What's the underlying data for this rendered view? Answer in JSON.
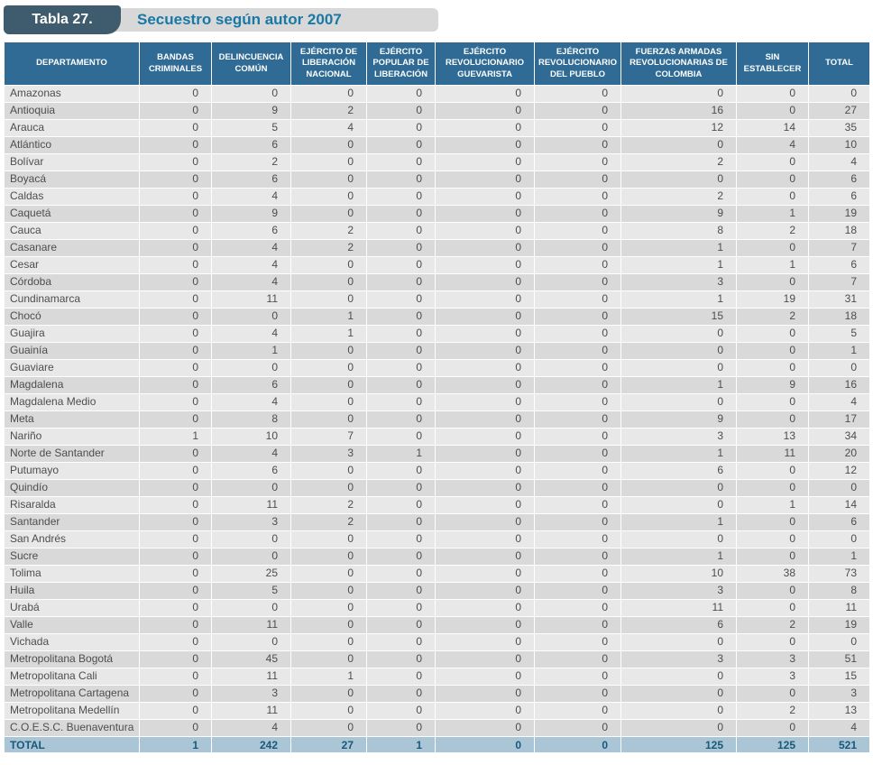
{
  "title": {
    "label": "Tabla 27.",
    "text": "Secuestro según autor 2007"
  },
  "colors": {
    "header_bg": "#2f6b94",
    "total_row_bg": "#a9c5d6",
    "total_row_text": "#19587a",
    "title_label_bg": "#3f5c6e",
    "title_text_color": "#1878a6",
    "row_odd": "#e8e8e8",
    "row_even": "#d9d9d9"
  },
  "table": {
    "columns": [
      "DEPARTAMENTO",
      "BANDAS CRIMINALES",
      "DELINCUENCIA COMÚN",
      "EJÉRCITO DE LIBERACIÓN NACIONAL",
      "EJÉRCITO POPULAR DE LIBERACIÓN",
      "EJÉRCITO REVOLUCIONARIO GUEVARISTA",
      "EJÉRCITO REVOLUCIONARIO DEL PUEBLO",
      "FUERZAS ARMADAS REVOLUCIONARIAS DE COLOMBIA",
      "SIN ESTABLECER",
      "TOTAL"
    ],
    "rows": [
      {
        "departamento": "Amazonas",
        "values": [
          0,
          0,
          0,
          0,
          0,
          0,
          0,
          0,
          0
        ]
      },
      {
        "departamento": "Antioquia",
        "values": [
          0,
          9,
          2,
          0,
          0,
          0,
          16,
          0,
          27
        ]
      },
      {
        "departamento": "Arauca",
        "values": [
          0,
          5,
          4,
          0,
          0,
          0,
          12,
          14,
          35
        ]
      },
      {
        "departamento": "Atlántico",
        "values": [
          0,
          6,
          0,
          0,
          0,
          0,
          0,
          4,
          10
        ]
      },
      {
        "departamento": "Bolívar",
        "values": [
          0,
          2,
          0,
          0,
          0,
          0,
          2,
          0,
          4
        ]
      },
      {
        "departamento": "Boyacá",
        "values": [
          0,
          6,
          0,
          0,
          0,
          0,
          0,
          0,
          6
        ]
      },
      {
        "departamento": "Caldas",
        "values": [
          0,
          4,
          0,
          0,
          0,
          0,
          2,
          0,
          6
        ]
      },
      {
        "departamento": "Caquetá",
        "values": [
          0,
          9,
          0,
          0,
          0,
          0,
          9,
          1,
          19
        ]
      },
      {
        "departamento": "Cauca",
        "values": [
          0,
          6,
          2,
          0,
          0,
          0,
          8,
          2,
          18
        ]
      },
      {
        "departamento": "Casanare",
        "values": [
          0,
          4,
          2,
          0,
          0,
          0,
          1,
          0,
          7
        ]
      },
      {
        "departamento": "Cesar",
        "values": [
          0,
          4,
          0,
          0,
          0,
          0,
          1,
          1,
          6
        ]
      },
      {
        "departamento": "Córdoba",
        "values": [
          0,
          4,
          0,
          0,
          0,
          0,
          3,
          0,
          7
        ]
      },
      {
        "departamento": "Cundinamarca",
        "values": [
          0,
          11,
          0,
          0,
          0,
          0,
          1,
          19,
          31
        ]
      },
      {
        "departamento": "Chocó",
        "values": [
          0,
          0,
          1,
          0,
          0,
          0,
          15,
          2,
          18
        ]
      },
      {
        "departamento": "Guajira",
        "values": [
          0,
          4,
          1,
          0,
          0,
          0,
          0,
          0,
          5
        ]
      },
      {
        "departamento": "Guainía",
        "values": [
          0,
          1,
          0,
          0,
          0,
          0,
          0,
          0,
          1
        ]
      },
      {
        "departamento": "Guaviare",
        "values": [
          0,
          0,
          0,
          0,
          0,
          0,
          0,
          0,
          0
        ]
      },
      {
        "departamento": "Magdalena",
        "values": [
          0,
          6,
          0,
          0,
          0,
          0,
          1,
          9,
          16
        ]
      },
      {
        "departamento": "Magdalena Medio",
        "values": [
          0,
          4,
          0,
          0,
          0,
          0,
          0,
          0,
          4
        ]
      },
      {
        "departamento": "Meta",
        "values": [
          0,
          8,
          0,
          0,
          0,
          0,
          9,
          0,
          17
        ]
      },
      {
        "departamento": "Nariño",
        "values": [
          1,
          10,
          7,
          0,
          0,
          0,
          3,
          13,
          34
        ]
      },
      {
        "departamento": "Norte de Santander",
        "values": [
          0,
          4,
          3,
          1,
          0,
          0,
          1,
          11,
          20
        ]
      },
      {
        "departamento": "Putumayo",
        "values": [
          0,
          6,
          0,
          0,
          0,
          0,
          6,
          0,
          12
        ]
      },
      {
        "departamento": "Quindío",
        "values": [
          0,
          0,
          0,
          0,
          0,
          0,
          0,
          0,
          0
        ]
      },
      {
        "departamento": "Risaralda",
        "values": [
          0,
          11,
          2,
          0,
          0,
          0,
          0,
          1,
          14
        ]
      },
      {
        "departamento": "Santander",
        "values": [
          0,
          3,
          2,
          0,
          0,
          0,
          1,
          0,
          6
        ]
      },
      {
        "departamento": "San Andrés",
        "values": [
          0,
          0,
          0,
          0,
          0,
          0,
          0,
          0,
          0
        ]
      },
      {
        "departamento": "Sucre",
        "values": [
          0,
          0,
          0,
          0,
          0,
          0,
          1,
          0,
          1
        ]
      },
      {
        "departamento": "Tolima",
        "values": [
          0,
          25,
          0,
          0,
          0,
          0,
          10,
          38,
          73
        ]
      },
      {
        "departamento": "Huila",
        "values": [
          0,
          5,
          0,
          0,
          0,
          0,
          3,
          0,
          8
        ]
      },
      {
        "departamento": "Urabá",
        "values": [
          0,
          0,
          0,
          0,
          0,
          0,
          11,
          0,
          11
        ]
      },
      {
        "departamento": "Valle",
        "values": [
          0,
          11,
          0,
          0,
          0,
          0,
          6,
          2,
          19
        ]
      },
      {
        "departamento": "Vichada",
        "values": [
          0,
          0,
          0,
          0,
          0,
          0,
          0,
          0,
          0
        ]
      },
      {
        "departamento": "Metropolitana Bogotá",
        "values": [
          0,
          45,
          0,
          0,
          0,
          0,
          3,
          3,
          51
        ]
      },
      {
        "departamento": "Metropolitana Cali",
        "values": [
          0,
          11,
          1,
          0,
          0,
          0,
          0,
          3,
          15
        ]
      },
      {
        "departamento": "Metropolitana Cartagena",
        "values": [
          0,
          3,
          0,
          0,
          0,
          0,
          0,
          0,
          3
        ]
      },
      {
        "departamento": "Metropolitana Medellín",
        "values": [
          0,
          11,
          0,
          0,
          0,
          0,
          0,
          2,
          13
        ]
      },
      {
        "departamento": "C.O.E.S.C. Buenaventura",
        "values": [
          0,
          4,
          0,
          0,
          0,
          0,
          0,
          0,
          4
        ]
      }
    ],
    "total_row": {
      "departamento": "TOTAL",
      "values": [
        1,
        242,
        27,
        1,
        0,
        0,
        125,
        125,
        521
      ]
    }
  }
}
